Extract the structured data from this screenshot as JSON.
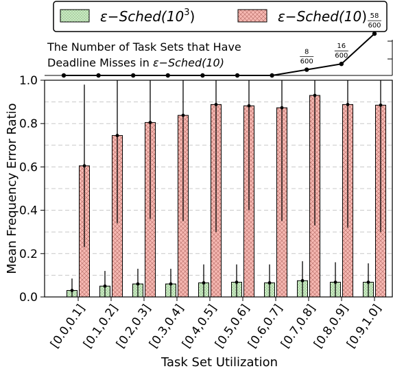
{
  "chart_data": {
    "type": "bar",
    "xlabel": "Task Set Utilization",
    "ylabel": "Mean Frequency Error Ratio",
    "ylim": [
      0,
      1.0
    ],
    "yticks": [
      "0.0",
      "0.2",
      "0.4",
      "0.6",
      "0.8",
      "1.0"
    ],
    "grid": true,
    "legend_position": "top",
    "categories": [
      "[0.0,0.1]",
      "[0.1,0.2]",
      "[0.2,0.3]",
      "[0.3,0.4]",
      "[0.4,0.5]",
      "[0.5,0.6]",
      "[0.6,0.7]",
      "[0.7,0.8]",
      "[0.8,0.9]",
      "[0.9,1.0]"
    ],
    "series": [
      {
        "name": "ε−Sched(10³)",
        "name_parts": {
          "base": "ε−Sched(10",
          "sup": "3",
          "tail": ")"
        },
        "color": "#c9eac2",
        "hatch": "dots",
        "values": [
          0.03,
          0.05,
          0.06,
          0.06,
          0.065,
          0.068,
          0.065,
          0.075,
          0.068,
          0.068
        ],
        "error_low": [
          0.0,
          0.0,
          0.0,
          0.0,
          0.0,
          0.0,
          0.0,
          0.0,
          0.0,
          0.0
        ],
        "error_high": [
          0.085,
          0.12,
          0.13,
          0.13,
          0.15,
          0.15,
          0.15,
          0.165,
          0.16,
          0.155
        ]
      },
      {
        "name": "ε−Sched(10)",
        "name_parts": {
          "base": "ε−Sched(10",
          "sup": "",
          "tail": ")"
        },
        "color": "#f6b8b2",
        "hatch": "crosshatch",
        "values": [
          0.605,
          0.745,
          0.805,
          0.838,
          0.888,
          0.882,
          0.873,
          0.93,
          0.888,
          0.885
        ],
        "error_low": [
          0.23,
          0.34,
          0.36,
          0.35,
          0.3,
          0.4,
          0.35,
          0.33,
          0.32,
          0.3
        ],
        "error_high": [
          0.98,
          1.0,
          1.0,
          1.0,
          1.0,
          1.0,
          1.0,
          1.0,
          1.0,
          1.0
        ]
      }
    ],
    "inset": {
      "title_line1": "The Number of Task Sets that Have",
      "title_line2_prefix": "Deadline Misses in ",
      "title_line2_series": "ε−Sched(10)",
      "counts": [
        0,
        0,
        0,
        0,
        0,
        0,
        0,
        8,
        16,
        58
      ],
      "total": 600,
      "labels": [
        {
          "index": 7,
          "num": "8",
          "den": "600"
        },
        {
          "index": 8,
          "num": "16",
          "den": "600"
        },
        {
          "index": 9,
          "num": "58",
          "den": "600"
        }
      ]
    }
  }
}
